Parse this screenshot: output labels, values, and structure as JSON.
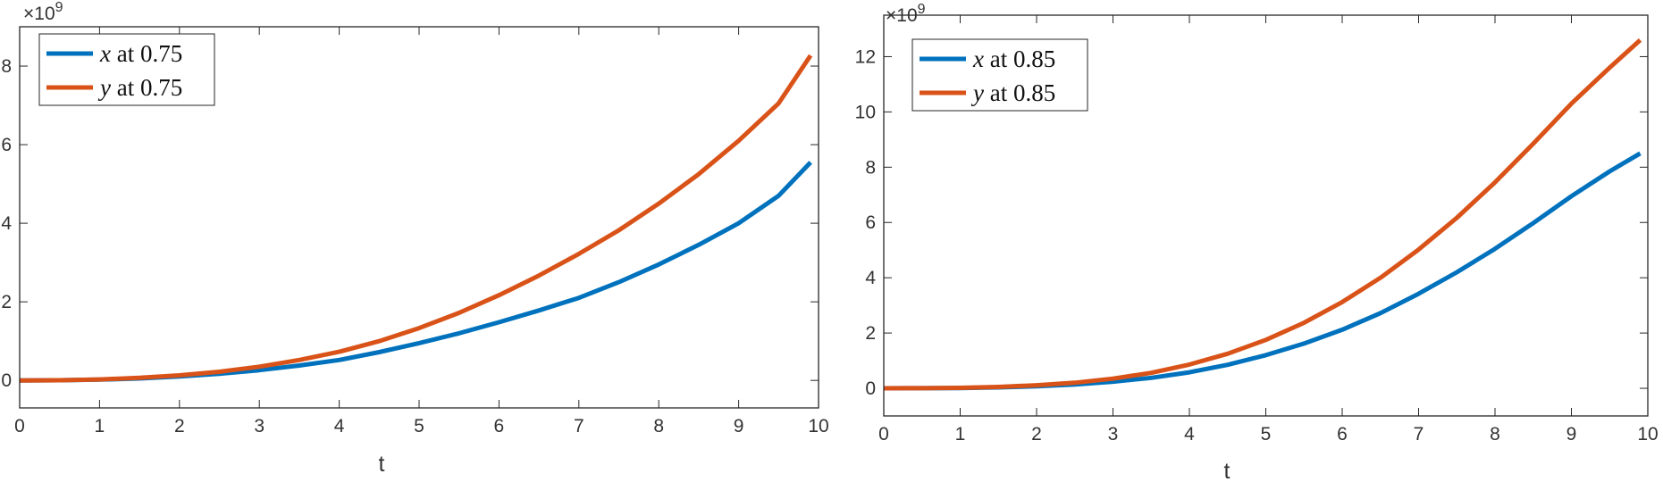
{
  "chart_data": [
    {
      "type": "line",
      "title": "",
      "xlabel": "t",
      "ylabel": "",
      "y_exponent_label": "×10",
      "y_exponent": "9",
      "xlim": [
        0,
        10
      ],
      "ylim": [
        -0.7,
        9.0
      ],
      "xticks": [
        "0",
        "1",
        "2",
        "3",
        "4",
        "5",
        "6",
        "7",
        "8",
        "9",
        "10"
      ],
      "yticks": [
        "0",
        "2",
        "4",
        "6",
        "8"
      ],
      "legend_position": "top-left",
      "x": [
        0,
        0.5,
        1,
        1.5,
        2,
        2.5,
        3,
        3.5,
        4,
        4.5,
        5,
        5.5,
        6,
        6.5,
        7,
        7.5,
        8,
        8.5,
        9,
        9.5,
        9.9
      ],
      "series": [
        {
          "name": "x at 0.75",
          "legend_var": "x",
          "legend_rest": " at 0.75",
          "color": "#0072BD",
          "values": [
            0,
            0.004,
            0.02,
            0.05,
            0.1,
            0.17,
            0.26,
            0.38,
            0.52,
            0.72,
            0.95,
            1.2,
            1.48,
            1.78,
            2.1,
            2.5,
            2.95,
            3.45,
            4.0,
            4.7,
            5.55
          ]
        },
        {
          "name": "y at 0.75",
          "legend_var": "y",
          "legend_rest": " at 0.75",
          "color": "#D95319",
          "values": [
            0,
            0.005,
            0.025,
            0.065,
            0.13,
            0.22,
            0.35,
            0.52,
            0.73,
            1.0,
            1.33,
            1.72,
            2.17,
            2.67,
            3.22,
            3.82,
            4.5,
            5.25,
            6.1,
            7.05,
            8.27
          ]
        }
      ]
    },
    {
      "type": "line",
      "title": "",
      "xlabel": "t",
      "ylabel": "",
      "y_exponent_label": "×10",
      "y_exponent": "9",
      "xlim": [
        0,
        10
      ],
      "ylim": [
        -1.0,
        13.5
      ],
      "xticks": [
        "0",
        "1",
        "2",
        "3",
        "4",
        "5",
        "6",
        "7",
        "8",
        "9",
        "10"
      ],
      "yticks": [
        "0",
        "2",
        "4",
        "6",
        "8",
        "10",
        "12"
      ],
      "legend_position": "top-left",
      "x": [
        0,
        0.5,
        1,
        1.5,
        2,
        2.5,
        3,
        3.5,
        4,
        4.5,
        5,
        5.5,
        6,
        6.5,
        7,
        7.5,
        8,
        8.5,
        9,
        9.5,
        9.9
      ],
      "series": [
        {
          "name": "x at 0.85",
          "legend_var": "x",
          "legend_rest": " at 0.85",
          "color": "#0072BD",
          "values": [
            0,
            0.003,
            0.012,
            0.035,
            0.075,
            0.14,
            0.24,
            0.38,
            0.58,
            0.85,
            1.2,
            1.62,
            2.12,
            2.72,
            3.42,
            4.2,
            5.05,
            5.98,
            6.95,
            7.85,
            8.5
          ]
        },
        {
          "name": "y at 0.85",
          "legend_var": "y",
          "legend_rest": " at 0.85",
          "color": "#D95319",
          "values": [
            0,
            0.004,
            0.018,
            0.05,
            0.11,
            0.2,
            0.35,
            0.56,
            0.86,
            1.25,
            1.75,
            2.37,
            3.12,
            4.0,
            5.02,
            6.17,
            7.45,
            8.85,
            10.3,
            11.6,
            12.6
          ]
        }
      ]
    }
  ]
}
